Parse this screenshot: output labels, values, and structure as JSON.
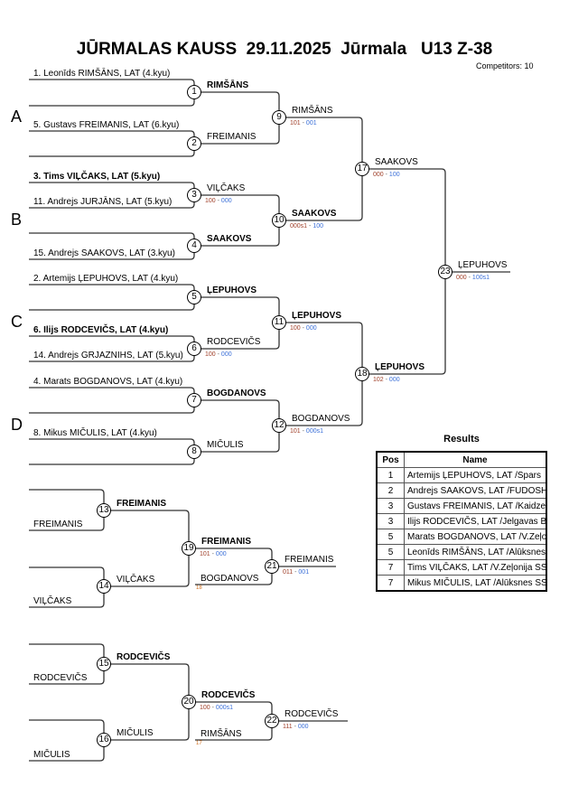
{
  "header": {
    "title": "JŪRMALAS KAUSS  29.11.2025  Jūrmala   U13 Z-38",
    "competitors": "Competitors: 10"
  },
  "pools": [
    "A",
    "B",
    "C",
    "D"
  ],
  "entries": [
    {
      "text": "1. Leonīds RIMŠĀNS, LAT (4.kyu)",
      "bold": false
    },
    {
      "text": "",
      "bold": false
    },
    {
      "text": "5. Gustavs FREIMANIS, LAT (6.kyu)",
      "bold": false
    },
    {
      "text": "",
      "bold": false
    },
    {
      "text": "3. Tims VIĻČAKS, LAT (5.kyu)",
      "bold": true
    },
    {
      "text": "11. Andrejs JURJĀNS, LAT (5.kyu)",
      "bold": false
    },
    {
      "text": "",
      "bold": false
    },
    {
      "text": "15. Andrejs SAAKOVS, LAT (3.kyu)",
      "bold": false
    },
    {
      "text": "2. Artemijs ĻEPUHOVS, LAT (4.kyu)",
      "bold": false
    },
    {
      "text": "",
      "bold": false
    },
    {
      "text": "6. Ilijs RODCEVIČS, LAT (4.kyu)",
      "bold": true
    },
    {
      "text": "14. Andrejs GRJAZNIHS, LAT (5.kyu)",
      "bold": false
    },
    {
      "text": "4. Marats BOGDANOVS, LAT (4.kyu)",
      "bold": false
    },
    {
      "text": "",
      "bold": false
    },
    {
      "text": "8. Mikus MIČULIS, LAT (4.kyu)",
      "bold": false
    },
    {
      "text": "",
      "bold": false
    }
  ],
  "repechage_entries": [
    {
      "match": 13,
      "top": "",
      "bottom": "FREIMANIS"
    },
    {
      "match": 14,
      "top": "",
      "bottom": "VIĻČAKS"
    },
    {
      "match": 15,
      "top": "",
      "bottom": "RODCEVIČS"
    },
    {
      "match": 16,
      "top": "",
      "bottom": "MIČULIS"
    },
    {
      "match": 21,
      "top": "",
      "bottom": "BOGDANOVS",
      "ref": "18"
    },
    {
      "match": 22,
      "top": "",
      "bottom": "RIMŠĀNS",
      "ref": "17"
    }
  ],
  "matches": [
    {
      "no": "1",
      "winner": "RIMŠĀNS",
      "bold": true,
      "score": [
        "",
        ""
      ]
    },
    {
      "no": "2",
      "winner": "FREIMANIS",
      "bold": false,
      "score": [
        "",
        ""
      ]
    },
    {
      "no": "3",
      "winner": "VIĻČAKS",
      "bold": false,
      "score": [
        "100",
        "000"
      ]
    },
    {
      "no": "4",
      "winner": "SAAKOVS",
      "bold": true,
      "score": [
        "",
        ""
      ]
    },
    {
      "no": "5",
      "winner": "ĻEPUHOVS",
      "bold": true,
      "score": [
        "",
        ""
      ]
    },
    {
      "no": "6",
      "winner": "RODCEVIČS",
      "bold": false,
      "score": [
        "100",
        "000"
      ]
    },
    {
      "no": "7",
      "winner": "BOGDANOVS",
      "bold": true,
      "score": [
        "",
        ""
      ]
    },
    {
      "no": "8",
      "winner": "MIČULIS",
      "bold": false,
      "score": [
        "",
        ""
      ]
    },
    {
      "no": "9",
      "winner": "RIMŠĀNS",
      "bold": false,
      "score": [
        "101",
        "001"
      ]
    },
    {
      "no": "10",
      "winner": "SAAKOVS",
      "bold": true,
      "score": [
        "000s1",
        "100"
      ]
    },
    {
      "no": "11",
      "winner": "ĻEPUHOVS",
      "bold": true,
      "score": [
        "100",
        "000"
      ]
    },
    {
      "no": "12",
      "winner": "BOGDANOVS",
      "bold": false,
      "score": [
        "101",
        "000s1"
      ]
    },
    {
      "no": "17",
      "winner": "SAAKOVS",
      "bold": false,
      "score": [
        "000",
        "100"
      ]
    },
    {
      "no": "18",
      "winner": "ĻEPUHOVS",
      "bold": true,
      "score": [
        "102",
        "000"
      ]
    },
    {
      "no": "23",
      "winner": "ĻEPUHOVS",
      "bold": false,
      "score": [
        "000",
        "100s1"
      ]
    },
    {
      "no": "13",
      "winner": "FREIMANIS",
      "bold": true,
      "score": [
        "",
        ""
      ]
    },
    {
      "no": "14",
      "winner": "VIĻČAKS",
      "bold": false,
      "score": [
        "",
        ""
      ]
    },
    {
      "no": "15",
      "winner": "RODCEVIČS",
      "bold": true,
      "score": [
        "",
        ""
      ]
    },
    {
      "no": "16",
      "winner": "MIČULIS",
      "bold": false,
      "score": [
        "",
        ""
      ]
    },
    {
      "no": "19",
      "winner": "FREIMANIS",
      "bold": true,
      "score": [
        "101",
        "000"
      ]
    },
    {
      "no": "20",
      "winner": "RODCEVIČS",
      "bold": true,
      "score": [
        "100",
        "000s1"
      ]
    },
    {
      "no": "21",
      "winner": "FREIMANIS",
      "bold": false,
      "score": [
        "011",
        "001"
      ]
    },
    {
      "no": "22",
      "winner": "RODCEVIČS",
      "bold": false,
      "score": [
        "111",
        "000"
      ]
    }
  ],
  "results": {
    "title": "Results",
    "headers": [
      "Pos",
      "Name"
    ],
    "rows": [
      {
        "pos": "1",
        "name": "Artemijs ĻEPUHOVS, LAT /Spars"
      },
      {
        "pos": "2",
        "name": "Andrejs SAAKOVS, LAT /FUDOSHIN"
      },
      {
        "pos": "3",
        "name": "Gustavs FREIMANIS, LAT /Kaidzen"
      },
      {
        "pos": "3",
        "name": "Ilijs RODCEVIČS, LAT /Jelgavas BJSS"
      },
      {
        "pos": "5",
        "name": "Marats BOGDANOVS, LAT /V.Zeļonija"
      },
      {
        "pos": "5",
        "name": "Leonīds RIMŠĀNS, LAT /Alūksnes SS"
      },
      {
        "pos": "7",
        "name": "Tims VIĻČAKS, LAT /V.Zeļonija SS"
      },
      {
        "pos": "7",
        "name": "Mikus MIČULIS, LAT /Alūksnes SS"
      }
    ]
  },
  "colors": {
    "line": "#333333",
    "score_a": "#a0402a",
    "score_b": "#3a6fd8",
    "ref": "#d07020"
  }
}
